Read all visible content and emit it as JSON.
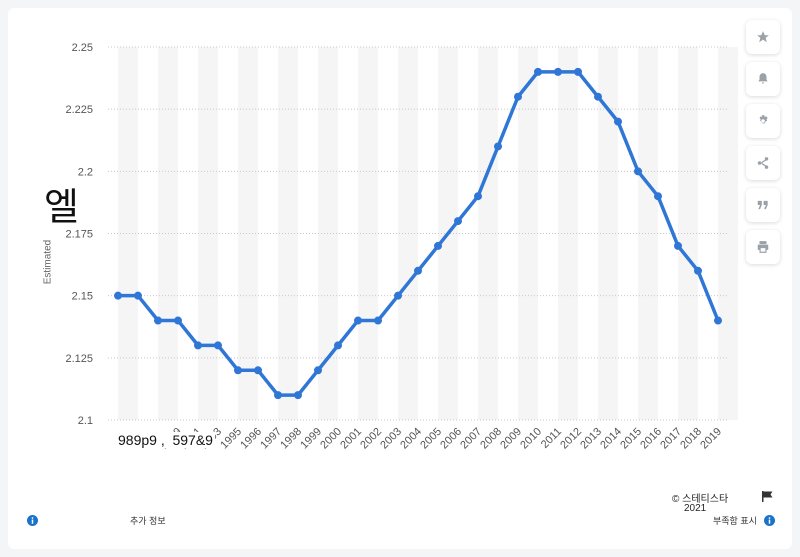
{
  "chart_data": {
    "type": "line",
    "title": "",
    "xlabel": "",
    "ylabel": "Estimated",
    "categories": [
      "1989",
      "1990",
      "1991",
      "1992",
      "1993",
      "1994",
      "1995",
      "1996",
      "1997",
      "1998",
      "1999",
      "2000",
      "2001",
      "2002",
      "2003",
      "2004",
      "2005",
      "2006",
      "2007",
      "2008",
      "2009",
      "2010",
      "2011",
      "2012",
      "2013",
      "2014",
      "2015",
      "2016",
      "2017",
      "2018",
      "2019"
    ],
    "x_tick_labels": [
      "1989",
      "1991",
      "1993",
      "1995",
      "1996",
      "1997",
      "1998",
      "1999",
      "2000",
      "2001",
      "2002",
      "2003",
      "2004",
      "2005",
      "2006",
      "2007",
      "2008",
      "2009",
      "2010",
      "2011",
      "2012",
      "2013",
      "2014",
      "2015",
      "2016",
      "2017",
      "2018",
      "2019"
    ],
    "values": [
      2.15,
      2.15,
      2.14,
      2.14,
      2.13,
      2.13,
      2.12,
      2.12,
      2.11,
      2.11,
      2.12,
      2.13,
      2.14,
      2.14,
      2.15,
      2.16,
      2.17,
      2.18,
      2.19,
      2.21,
      2.23,
      2.24,
      2.24,
      2.24,
      2.23,
      2.22,
      2.2,
      2.19,
      2.17,
      2.16,
      2.14
    ],
    "ylim": [
      2.1,
      2.25
    ],
    "yticks": [
      "2.1",
      "2.125",
      "2.15",
      "2.175",
      "2.2",
      "2.225",
      "2.25"
    ],
    "grid": true,
    "line_color": "#2f76d6",
    "band_color": "#f5f5f5"
  },
  "overlay": {
    "glyph": "엘",
    "scribble": "989p9 ,  597&9"
  },
  "toolbar": {
    "icons": [
      "star-icon",
      "bell-icon",
      "gear-icon",
      "share-icon",
      "quote-icon",
      "print-icon"
    ]
  },
  "footer": {
    "more_info": "추가 정보",
    "credit": "© 스테티스타",
    "year": "2021",
    "report": "부족함 표시"
  }
}
